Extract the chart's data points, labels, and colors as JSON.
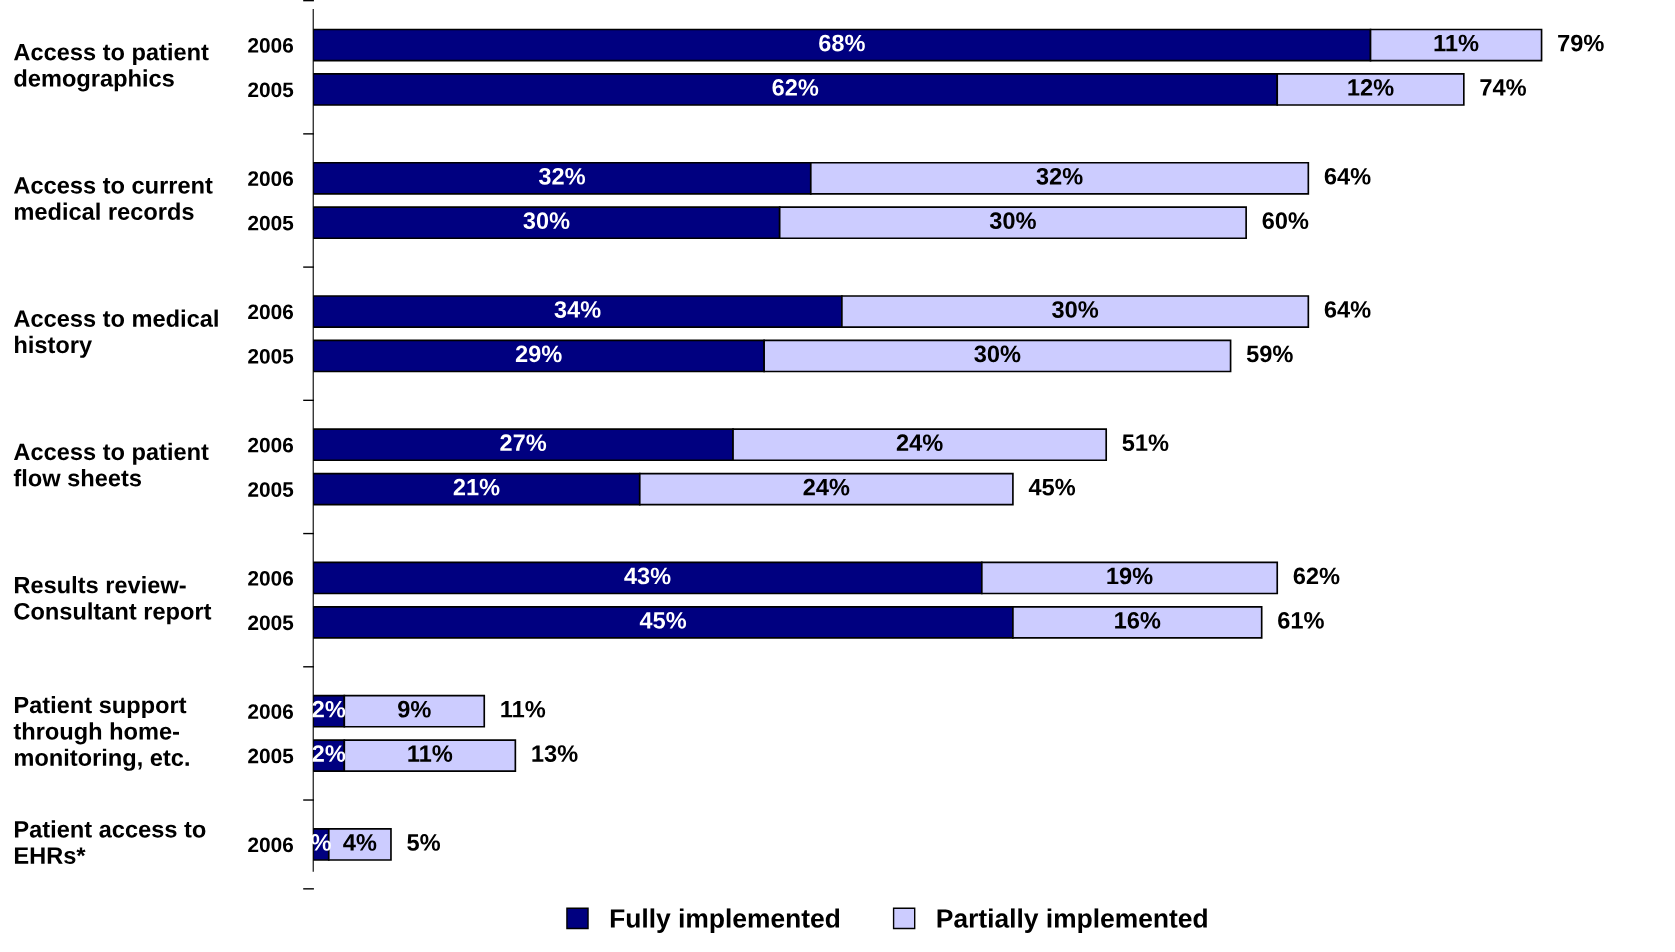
{
  "chart_data": {
    "type": "bar",
    "orientation": "horizontal",
    "stacked": true,
    "categories": [
      "2006",
      "2005",
      null,
      "2006",
      "2005",
      null,
      "2006",
      "2005",
      null,
      "2006",
      "2005",
      null,
      "2006",
      "2005",
      null,
      "2006",
      "2005",
      null,
      "2006"
    ],
    "series": [
      {
        "name": "Fully implemented",
        "color": "#000080",
        "values": [
          68,
          62,
          null,
          32,
          30,
          null,
          34,
          29,
          null,
          27,
          21,
          null,
          43,
          45,
          null,
          2,
          2,
          null,
          1
        ],
        "value_labels": [
          "68%",
          "62%",
          null,
          "32%",
          "30%",
          null,
          "34%",
          "29%",
          null,
          "27%",
          "21%",
          null,
          "43%",
          "45%",
          null,
          "2%",
          "2%",
          null,
          "%"
        ]
      },
      {
        "name": "Partially implemented",
        "color": "#ccccff",
        "values": [
          11,
          12,
          null,
          32,
          30,
          null,
          30,
          30,
          null,
          24,
          24,
          null,
          19,
          16,
          null,
          9,
          11,
          null,
          4
        ],
        "value_labels": [
          "11%",
          "12%",
          null,
          "32%",
          "30%",
          null,
          "30%",
          "30%",
          null,
          "24%",
          "24%",
          null,
          "19%",
          "16%",
          null,
          "9%",
          "11%",
          null,
          "4%"
        ]
      }
    ],
    "totals": [
      "79%",
      "74%",
      null,
      "64%",
      "60%",
      null,
      "64%",
      "59%",
      null,
      "51%",
      "45%",
      null,
      "62%",
      "61%",
      null,
      "11%",
      "13%",
      null,
      "5%"
    ],
    "annotations": [
      "Access to patient\ndemographics",
      "Access to current\nmedical records",
      "Access to medical\nhistory",
      "Access to patient\nflow sheets",
      "Results review-\nConsultant report",
      "Patient support\nthrough home-\nmonitoring, etc.",
      "Patient access to\nEHRs*"
    ],
    "tick_labels": "y",
    "grid": false,
    "legend": "bottom"
  }
}
